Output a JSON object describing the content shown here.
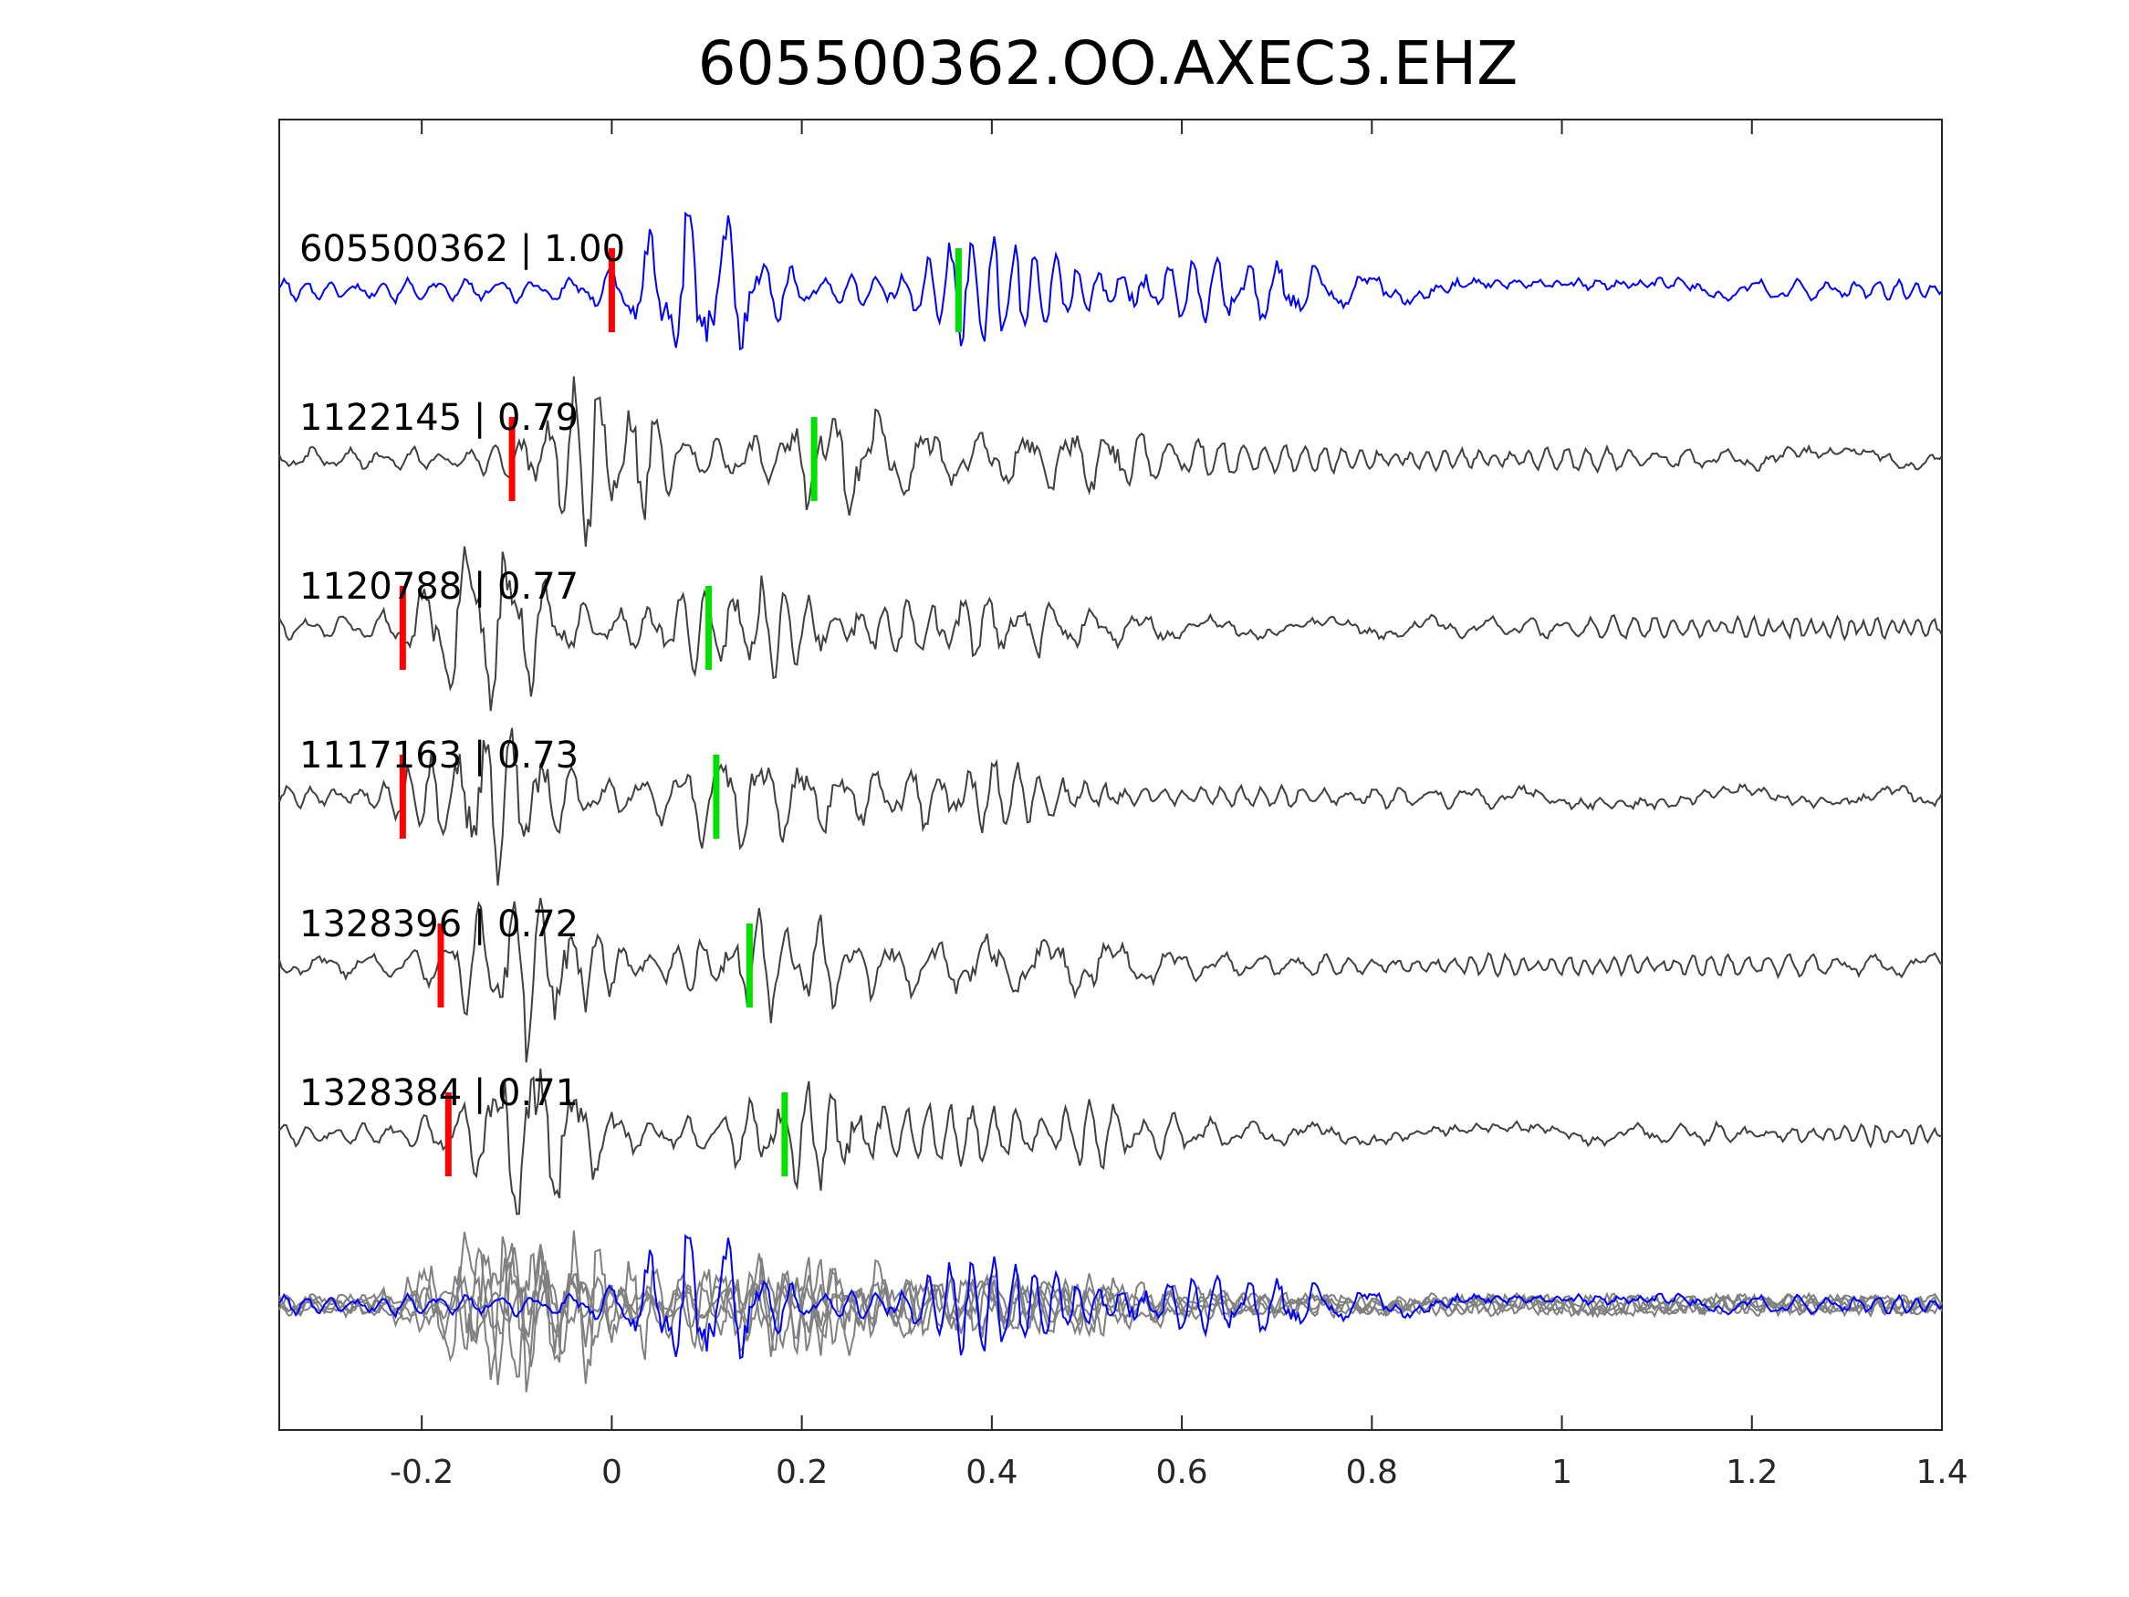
{
  "chart_data": {
    "type": "line",
    "title": "605500362.OO.AXEC3.EHZ",
    "xlabel": "",
    "ylabel": "",
    "xlim": [
      -0.35,
      1.4
    ],
    "xticks": [
      -0.2,
      0,
      0.2,
      0.4,
      0.6,
      0.8,
      1,
      1.2,
      1.4
    ],
    "xtick_labels": [
      "-0.2",
      "0",
      "0.2",
      "0.4",
      "0.6",
      "0.8",
      "1",
      "1.2",
      "1.4"
    ],
    "grid": false,
    "legend": "none",
    "colors": {
      "reference": "#0000ff",
      "match": "#404040",
      "overlay": "#808080",
      "p_pick": "#ff0000",
      "s_pick": "#00e000",
      "axes": "#262626"
    },
    "series": [
      {
        "id": "605500362",
        "label": "605500362 | 1.00",
        "correlation": 1.0,
        "reference": true,
        "p_pick": 0.0,
        "s_pick": 0.365
      },
      {
        "id": "1122145",
        "label": "1122145 | 0.79",
        "correlation": 0.79,
        "reference": false,
        "p_pick": -0.105,
        "s_pick": 0.213
      },
      {
        "id": "1120788",
        "label": "1120788 | 0.77",
        "correlation": 0.77,
        "reference": false,
        "p_pick": -0.22,
        "s_pick": 0.102
      },
      {
        "id": "1117163",
        "label": "1117163 | 0.73",
        "correlation": 0.73,
        "reference": false,
        "p_pick": -0.22,
        "s_pick": 0.11
      },
      {
        "id": "1328396",
        "label": "1328396 | 0.72",
        "correlation": 0.72,
        "reference": false,
        "p_pick": -0.18,
        "s_pick": 0.145
      },
      {
        "id": "1328384",
        "label": "1328384 | 0.71",
        "correlation": 0.71,
        "reference": false,
        "p_pick": -0.172,
        "s_pick": 0.182
      }
    ],
    "overlay_stack": true
  }
}
